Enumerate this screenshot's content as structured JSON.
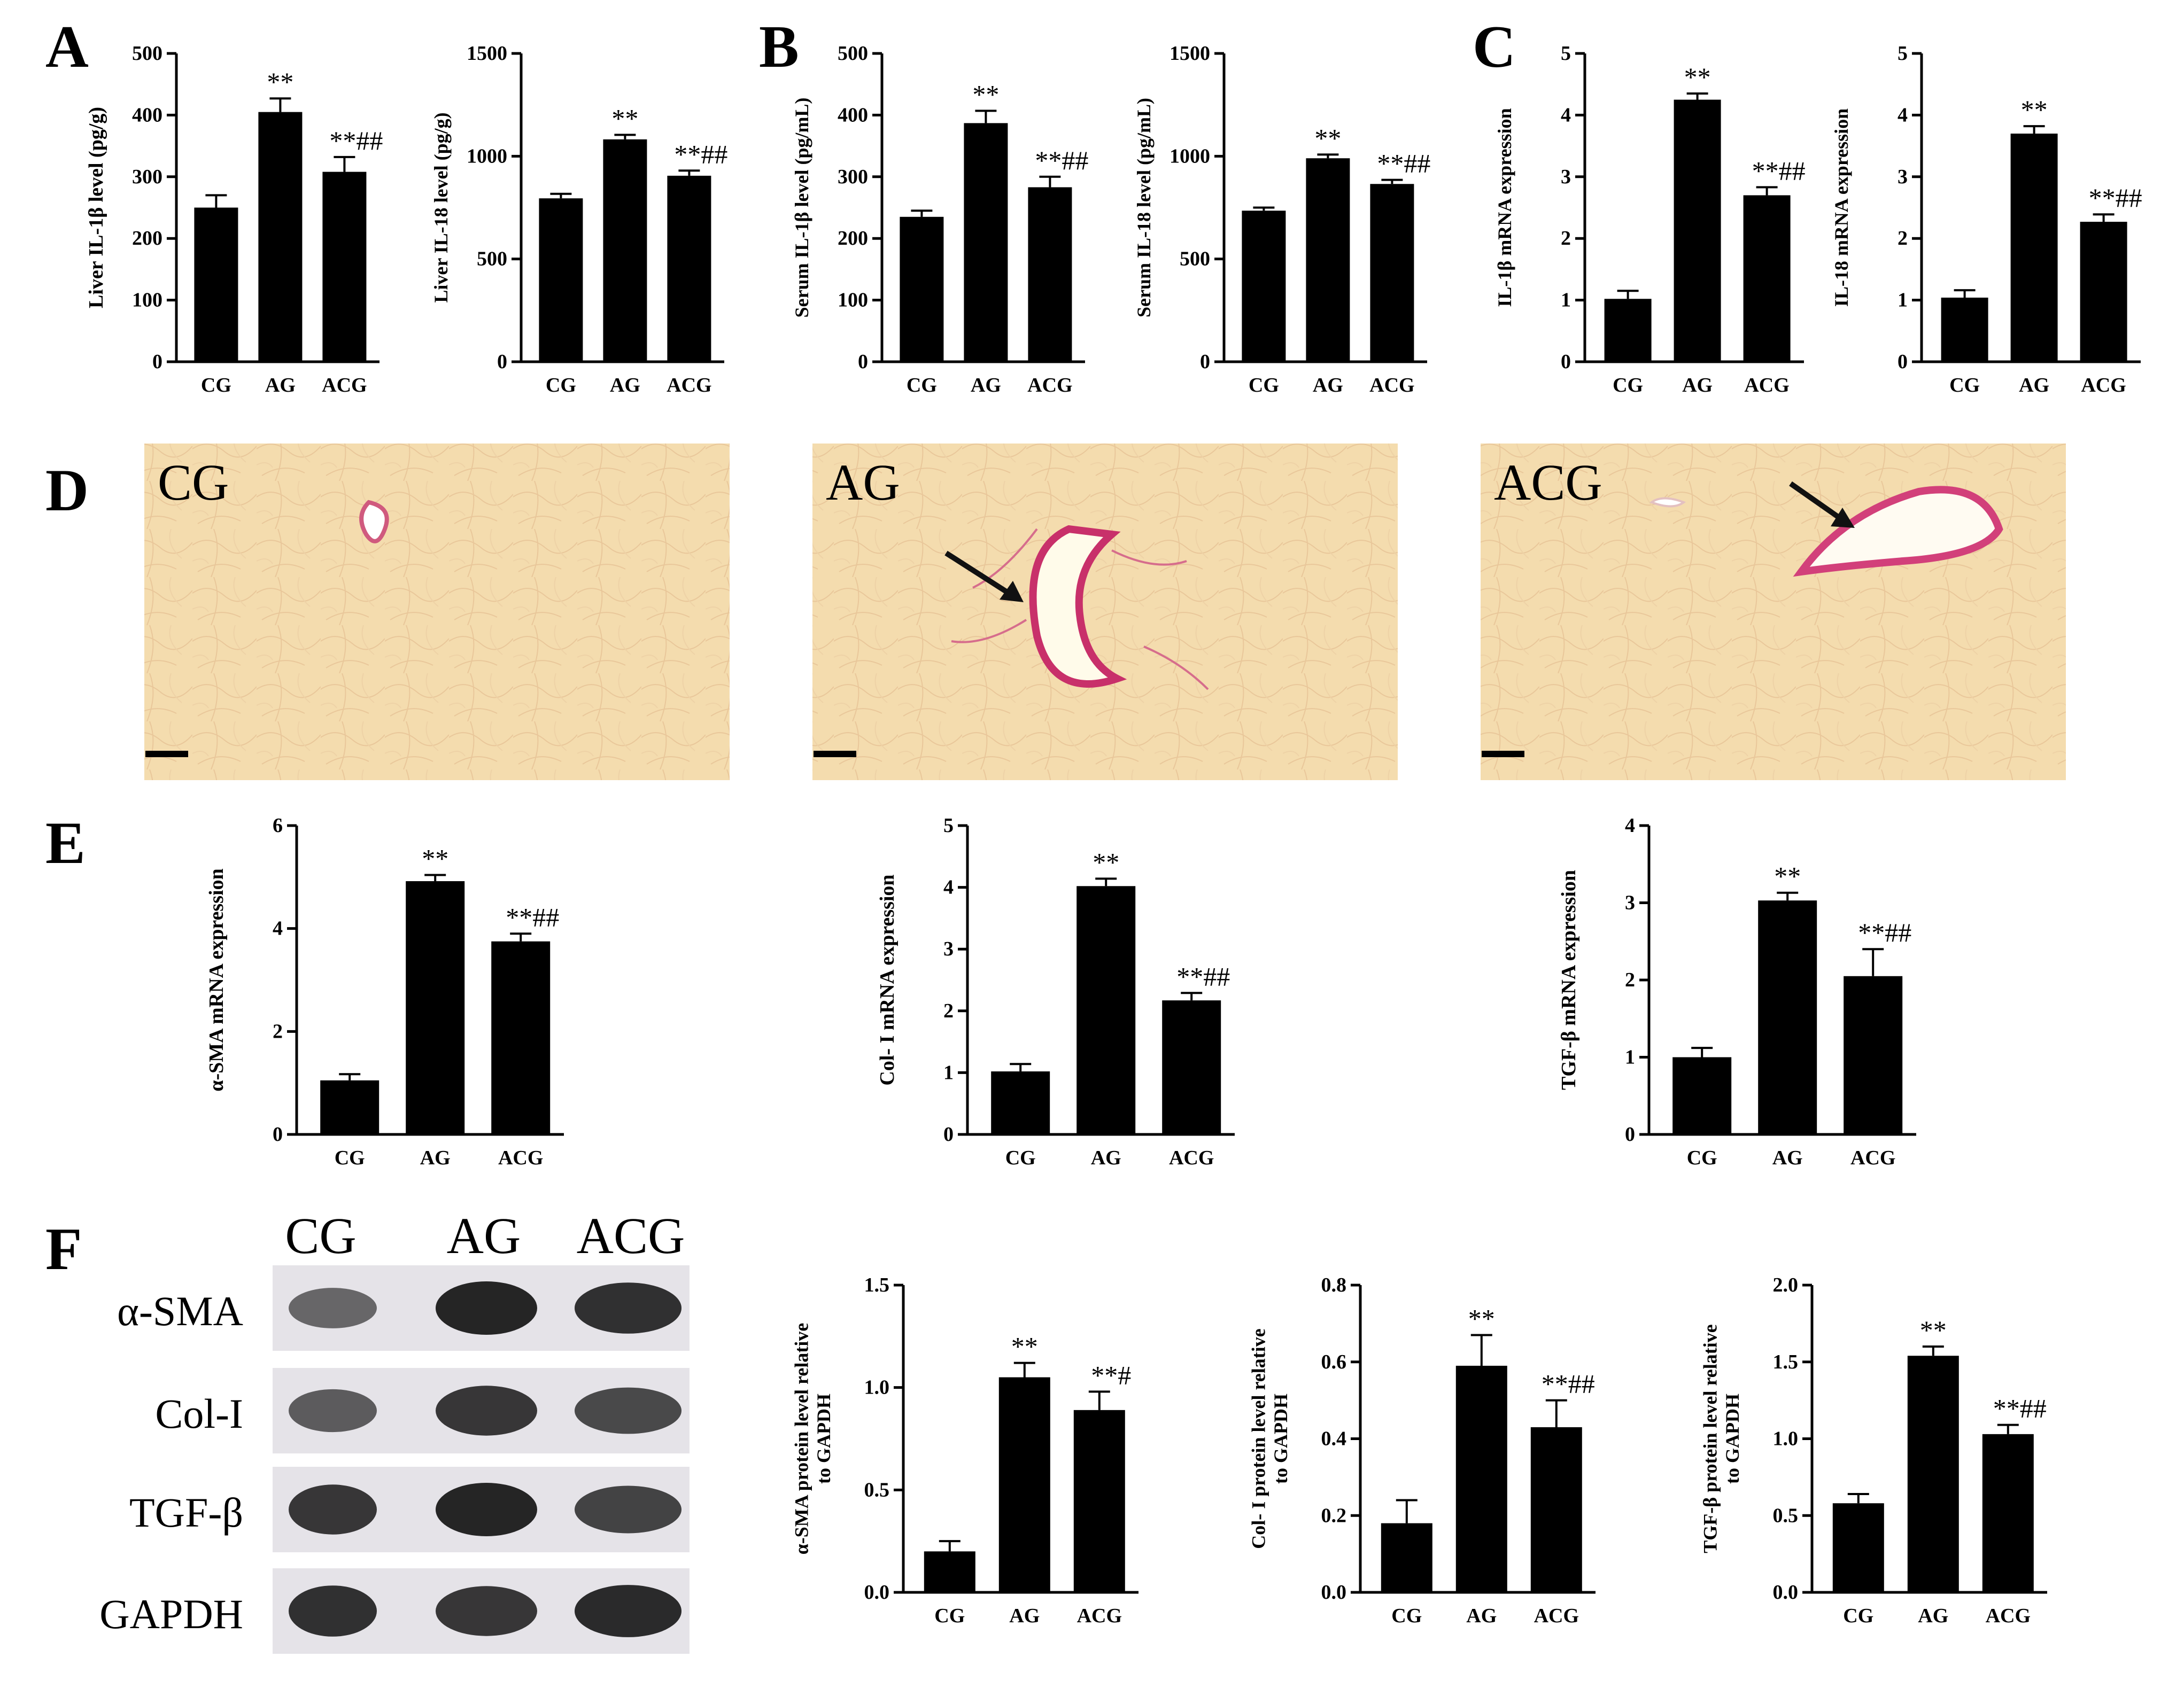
{
  "panels": [
    "A",
    "B",
    "C",
    "D",
    "E",
    "F"
  ],
  "groups": [
    "CG",
    "AG",
    "ACG"
  ],
  "chart_data": [
    {
      "id": "A1",
      "panel": "A",
      "type": "bar",
      "categories": [
        "CG",
        "AG",
        "ACG"
      ],
      "values": [
        250,
        405,
        308
      ],
      "errors": [
        20,
        22,
        24
      ],
      "annotations": [
        "",
        "**",
        "**##"
      ],
      "ylabel": "Liver IL-1β level (pg/g)",
      "ylim": [
        0,
        500
      ],
      "ticks": [
        "0",
        "100",
        "200",
        "300",
        "400",
        "500"
      ]
    },
    {
      "id": "A2",
      "panel": "A",
      "type": "bar",
      "categories": [
        "CG",
        "AG",
        "ACG"
      ],
      "values": [
        795,
        1082,
        905
      ],
      "errors": [
        22,
        22,
        25
      ],
      "annotations": [
        "",
        "**",
        "**##"
      ],
      "ylabel": "Liver IL-18 level (pg/g)",
      "ylim": [
        0,
        1500
      ],
      "ticks": [
        "0",
        "500",
        "1000",
        "1500"
      ]
    },
    {
      "id": "B1",
      "panel": "B",
      "type": "bar",
      "categories": [
        "CG",
        "AG",
        "ACG"
      ],
      "values": [
        235,
        387,
        283
      ],
      "errors": [
        10,
        20,
        17
      ],
      "annotations": [
        "",
        "**",
        "**##"
      ],
      "ylabel": "Serum IL-1β level (pg/mL)",
      "ylim": [
        0,
        500
      ],
      "ticks": [
        "0",
        "100",
        "200",
        "300",
        "400",
        "500"
      ]
    },
    {
      "id": "B2",
      "panel": "B",
      "type": "bar",
      "categories": [
        "CG",
        "AG",
        "ACG"
      ],
      "values": [
        735,
        990,
        865
      ],
      "errors": [
        15,
        18,
        20
      ],
      "annotations": [
        "",
        "**",
        "**##"
      ],
      "ylabel": "Serum IL-18 level (pg/mL)",
      "ylim": [
        0,
        1500
      ],
      "ticks": [
        "0",
        "500",
        "1000",
        "1500"
      ]
    },
    {
      "id": "C1",
      "panel": "C",
      "type": "bar",
      "categories": [
        "CG",
        "AG",
        "ACG"
      ],
      "values": [
        1.02,
        4.25,
        2.7
      ],
      "errors": [
        0.13,
        0.1,
        0.13
      ],
      "annotations": [
        "",
        "**",
        "**##"
      ],
      "ylabel": "IL-1β mRNA expression",
      "ylim": [
        0,
        5
      ],
      "ticks": [
        "0",
        "1",
        "2",
        "3",
        "4",
        "5"
      ]
    },
    {
      "id": "C2",
      "panel": "C",
      "type": "bar",
      "categories": [
        "CG",
        "AG",
        "ACG"
      ],
      "values": [
        1.04,
        3.7,
        2.27
      ],
      "errors": [
        0.12,
        0.12,
        0.12
      ],
      "annotations": [
        "",
        "**",
        "**##"
      ],
      "ylabel": "IL-18 mRNA expression",
      "ylim": [
        0,
        5
      ],
      "ticks": [
        "0",
        "1",
        "2",
        "3",
        "4",
        "5"
      ]
    },
    {
      "id": "E1",
      "panel": "E",
      "type": "bar",
      "categories": [
        "CG",
        "AG",
        "ACG"
      ],
      "values": [
        1.05,
        4.92,
        3.75
      ],
      "errors": [
        0.12,
        0.12,
        0.15
      ],
      "annotations": [
        "",
        "**",
        "**##"
      ],
      "ylabel": "α-SMA mRNA expression",
      "ylim": [
        0,
        6
      ],
      "ticks": [
        "0",
        "2",
        "4",
        "6"
      ]
    },
    {
      "id": "E2",
      "panel": "E",
      "type": "bar",
      "categories": [
        "CG",
        "AG",
        "ACG"
      ],
      "values": [
        1.02,
        4.02,
        2.17
      ],
      "errors": [
        0.12,
        0.12,
        0.12
      ],
      "annotations": [
        "",
        "**",
        "**##"
      ],
      "ylabel": "Col- I mRNA expression",
      "ylim": [
        0,
        5
      ],
      "ticks": [
        "0",
        "1",
        "2",
        "3",
        "4",
        "5"
      ]
    },
    {
      "id": "E3",
      "panel": "E",
      "type": "bar",
      "categories": [
        "CG",
        "AG",
        "ACG"
      ],
      "values": [
        1.0,
        3.03,
        2.05
      ],
      "errors": [
        0.12,
        0.1,
        0.35
      ],
      "annotations": [
        "",
        "**",
        "**##"
      ],
      "ylabel": "TGF-β mRNA expression",
      "ylim": [
        0,
        4
      ],
      "ticks": [
        "0",
        "1",
        "2",
        "3",
        "4"
      ]
    },
    {
      "id": "F1",
      "panel": "F",
      "type": "bar",
      "categories": [
        "CG",
        "AG",
        "ACG"
      ],
      "values": [
        0.2,
        1.05,
        0.89
      ],
      "errors": [
        0.05,
        0.07,
        0.09
      ],
      "annotations": [
        "",
        "**",
        "**#"
      ],
      "ylabel": "α-SMA protein level relative to GAPDH",
      "ylim": [
        0,
        1.5
      ],
      "ticks": [
        "0.0",
        "0.5",
        "1.0",
        "1.5"
      ]
    },
    {
      "id": "F2",
      "panel": "F",
      "type": "bar",
      "categories": [
        "CG",
        "AG",
        "ACG"
      ],
      "values": [
        0.18,
        0.59,
        0.43
      ],
      "errors": [
        0.06,
        0.08,
        0.07
      ],
      "annotations": [
        "",
        "**",
        "**##"
      ],
      "ylabel": "Col- I protein level relative to GAPDH",
      "ylim": [
        0,
        0.8
      ],
      "ticks": [
        "0.0",
        "0.2",
        "0.4",
        "0.6",
        "0.8"
      ]
    },
    {
      "id": "F3",
      "panel": "F",
      "type": "bar",
      "categories": [
        "CG",
        "AG",
        "ACG"
      ],
      "values": [
        0.58,
        1.54,
        1.03
      ],
      "errors": [
        0.06,
        0.06,
        0.06
      ],
      "annotations": [
        "",
        "**",
        "**##"
      ],
      "ylabel": "TGF-β protein level relative to GAPDH",
      "ylim": [
        0,
        2.0
      ],
      "ticks": [
        "0.0",
        "0.5",
        "1.0",
        "1.5",
        "2.0"
      ]
    }
  ],
  "micrographs": {
    "labels": [
      "CG",
      "AG",
      "ACG"
    ]
  },
  "western_blot": {
    "columns": [
      "CG",
      "AG",
      "ACG"
    ],
    "rows": [
      "α-SMA",
      "Col-I",
      "TGF-β",
      "GAPDH"
    ]
  }
}
